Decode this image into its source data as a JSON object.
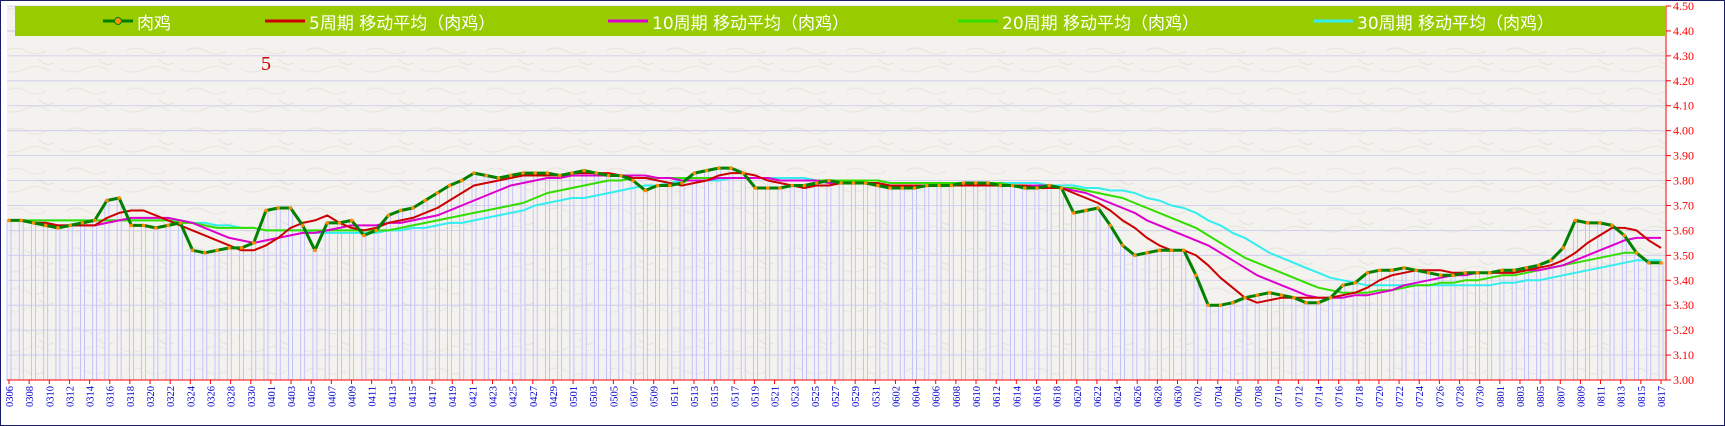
{
  "chart_data": {
    "type": "line",
    "corner_label": "5",
    "ylim": [
      3.0,
      4.5
    ],
    "y_ticks": [
      "3.00",
      "3.10",
      "3.20",
      "3.30",
      "3.40",
      "3.50",
      "3.60",
      "3.70",
      "3.80",
      "3.90",
      "4.00",
      "4.10",
      "4.20",
      "4.30",
      "4.40",
      "4.50"
    ],
    "x_tick_labels": [
      "0306",
      "0308",
      "0310",
      "0312",
      "0314",
      "0316",
      "0318",
      "0320",
      "0322",
      "0324",
      "0326",
      "0328",
      "0330",
      "0401",
      "0403",
      "0405",
      "0407",
      "0409",
      "0411",
      "0413",
      "0415",
      "0417",
      "0419",
      "0421",
      "0423",
      "0425",
      "0427",
      "0429",
      "0501",
      "0503",
      "0505",
      "0507",
      "0509",
      "0511",
      "0513",
      "0515",
      "0517",
      "0519",
      "0521",
      "0523",
      "0525",
      "0527",
      "0529",
      "0531",
      "0602",
      "0604",
      "0606",
      "0608",
      "0610",
      "0612",
      "0614",
      "0616",
      "0618",
      "0620",
      "0622",
      "0624",
      "0626",
      "0628",
      "0630",
      "0702",
      "0704",
      "0706",
      "0708",
      "0710",
      "0712",
      "0714",
      "0716",
      "0718",
      "0720",
      "0722",
      "0724",
      "0726",
      "0728",
      "0730",
      "0801",
      "0803",
      "0805",
      "0807",
      "0809",
      "0811",
      "0813",
      "0815",
      "0817"
    ],
    "series": [
      {
        "name": "肉鸡",
        "color": "#008000",
        "marker_color": "#ff8c00",
        "values": [
          3.64,
          3.64,
          3.63,
          3.62,
          3.61,
          3.62,
          3.63,
          3.64,
          3.72,
          3.73,
          3.62,
          3.62,
          3.61,
          3.62,
          3.63,
          3.52,
          3.51,
          3.52,
          3.53,
          3.53,
          3.55,
          3.68,
          3.69,
          3.69,
          3.62,
          3.52,
          3.63,
          3.63,
          3.64,
          3.58,
          3.6,
          3.66,
          3.68,
          3.69,
          3.72,
          3.75,
          3.78,
          3.8,
          3.83,
          3.82,
          3.81,
          3.82,
          3.83,
          3.83,
          3.83,
          3.82,
          3.83,
          3.84,
          3.83,
          3.82,
          3.82,
          3.8,
          3.76,
          3.78,
          3.78,
          3.79,
          3.83,
          3.84,
          3.85,
          3.85,
          3.83,
          3.77,
          3.77,
          3.77,
          3.78,
          3.78,
          3.79,
          3.8,
          3.79,
          3.79,
          3.79,
          3.78,
          3.77,
          3.77,
          3.77,
          3.78,
          3.78,
          3.78,
          3.79,
          3.79,
          3.79,
          3.78,
          3.78,
          3.77,
          3.77,
          3.78,
          3.77,
          3.67,
          3.68,
          3.69,
          3.62,
          3.54,
          3.5,
          3.51,
          3.52,
          3.52,
          3.52,
          3.42,
          3.3,
          3.3,
          3.31,
          3.33,
          3.34,
          3.35,
          3.34,
          3.33,
          3.31,
          3.31,
          3.33,
          3.38,
          3.39,
          3.43,
          3.44,
          3.44,
          3.45,
          3.44,
          3.43,
          3.42,
          3.42,
          3.43,
          3.43,
          3.43,
          3.44,
          3.44,
          3.45,
          3.46,
          3.48,
          3.53,
          3.64,
          3.63,
          3.63,
          3.62,
          3.58,
          3.51,
          3.47,
          3.47
        ]
      },
      {
        "name": "5周期 移动平均（肉鸡）",
        "color": "#cc0000",
        "values": [
          3.64,
          3.64,
          3.63,
          3.63,
          3.62,
          3.62,
          3.62,
          3.62,
          3.65,
          3.67,
          3.68,
          3.68,
          3.66,
          3.64,
          3.62,
          3.6,
          3.58,
          3.56,
          3.54,
          3.52,
          3.52,
          3.54,
          3.57,
          3.61,
          3.63,
          3.64,
          3.66,
          3.63,
          3.61,
          3.6,
          3.61,
          3.63,
          3.64,
          3.65,
          3.67,
          3.69,
          3.72,
          3.75,
          3.78,
          3.79,
          3.8,
          3.81,
          3.82,
          3.82,
          3.82,
          3.82,
          3.83,
          3.83,
          3.83,
          3.83,
          3.82,
          3.81,
          3.81,
          3.8,
          3.79,
          3.78,
          3.79,
          3.8,
          3.82,
          3.83,
          3.83,
          3.82,
          3.8,
          3.79,
          3.78,
          3.77,
          3.78,
          3.78,
          3.79,
          3.79,
          3.79,
          3.79,
          3.78,
          3.78,
          3.78,
          3.78,
          3.78,
          3.78,
          3.78,
          3.78,
          3.78,
          3.78,
          3.78,
          3.78,
          3.77,
          3.77,
          3.77,
          3.75,
          3.73,
          3.71,
          3.68,
          3.64,
          3.61,
          3.57,
          3.54,
          3.52,
          3.52,
          3.5,
          3.46,
          3.41,
          3.37,
          3.33,
          3.31,
          3.32,
          3.33,
          3.33,
          3.33,
          3.33,
          3.33,
          3.34,
          3.35,
          3.37,
          3.4,
          3.42,
          3.43,
          3.44,
          3.44,
          3.44,
          3.43,
          3.43,
          3.43,
          3.43,
          3.43,
          3.43,
          3.44,
          3.45,
          3.46,
          3.48,
          3.51,
          3.55,
          3.58,
          3.61,
          3.61,
          3.6,
          3.56,
          3.53
        ]
      },
      {
        "name": "10周期 移动平均（肉鸡）",
        "color": "#dd00cc",
        "values": [
          3.64,
          3.64,
          3.63,
          3.63,
          3.62,
          3.62,
          3.62,
          3.62,
          3.63,
          3.64,
          3.65,
          3.65,
          3.65,
          3.65,
          3.64,
          3.63,
          3.61,
          3.59,
          3.57,
          3.56,
          3.55,
          3.56,
          3.57,
          3.58,
          3.59,
          3.59,
          3.6,
          3.61,
          3.62,
          3.62,
          3.62,
          3.63,
          3.63,
          3.64,
          3.65,
          3.66,
          3.68,
          3.7,
          3.72,
          3.74,
          3.76,
          3.78,
          3.79,
          3.8,
          3.81,
          3.81,
          3.82,
          3.82,
          3.82,
          3.82,
          3.82,
          3.82,
          3.82,
          3.81,
          3.81,
          3.8,
          3.8,
          3.8,
          3.81,
          3.81,
          3.81,
          3.81,
          3.81,
          3.8,
          3.8,
          3.8,
          3.8,
          3.79,
          3.79,
          3.79,
          3.79,
          3.78,
          3.78,
          3.78,
          3.78,
          3.78,
          3.78,
          3.78,
          3.78,
          3.78,
          3.78,
          3.78,
          3.78,
          3.78,
          3.78,
          3.78,
          3.77,
          3.76,
          3.75,
          3.73,
          3.71,
          3.69,
          3.67,
          3.64,
          3.62,
          3.6,
          3.58,
          3.56,
          3.54,
          3.51,
          3.48,
          3.45,
          3.42,
          3.4,
          3.38,
          3.36,
          3.34,
          3.33,
          3.33,
          3.33,
          3.34,
          3.34,
          3.35,
          3.36,
          3.38,
          3.39,
          3.4,
          3.41,
          3.42,
          3.42,
          3.43,
          3.43,
          3.43,
          3.43,
          3.44,
          3.44,
          3.45,
          3.46,
          3.48,
          3.5,
          3.52,
          3.54,
          3.56,
          3.57,
          3.57,
          3.57
        ]
      },
      {
        "name": "20周期 移动平均（肉鸡）",
        "color": "#33dd00",
        "values": [
          3.64,
          3.64,
          3.64,
          3.64,
          3.64,
          3.64,
          3.64,
          3.64,
          3.64,
          3.64,
          3.64,
          3.64,
          3.64,
          3.64,
          3.63,
          3.63,
          3.62,
          3.61,
          3.61,
          3.61,
          3.61,
          3.6,
          3.6,
          3.6,
          3.6,
          3.6,
          3.6,
          3.6,
          3.6,
          3.6,
          3.6,
          3.6,
          3.61,
          3.62,
          3.63,
          3.64,
          3.65,
          3.66,
          3.67,
          3.68,
          3.69,
          3.7,
          3.71,
          3.73,
          3.75,
          3.76,
          3.77,
          3.78,
          3.79,
          3.8,
          3.8,
          3.81,
          3.81,
          3.81,
          3.81,
          3.81,
          3.81,
          3.81,
          3.81,
          3.81,
          3.81,
          3.81,
          3.81,
          3.8,
          3.8,
          3.8,
          3.8,
          3.8,
          3.8,
          3.8,
          3.8,
          3.8,
          3.79,
          3.79,
          3.79,
          3.79,
          3.79,
          3.79,
          3.79,
          3.79,
          3.79,
          3.79,
          3.78,
          3.78,
          3.78,
          3.78,
          3.77,
          3.77,
          3.76,
          3.75,
          3.74,
          3.73,
          3.71,
          3.69,
          3.67,
          3.65,
          3.63,
          3.61,
          3.58,
          3.55,
          3.52,
          3.49,
          3.47,
          3.45,
          3.43,
          3.41,
          3.39,
          3.37,
          3.36,
          3.35,
          3.35,
          3.35,
          3.36,
          3.36,
          3.37,
          3.38,
          3.38,
          3.39,
          3.39,
          3.4,
          3.4,
          3.41,
          3.42,
          3.42,
          3.43,
          3.44,
          3.45,
          3.46,
          3.47,
          3.48,
          3.49,
          3.5,
          3.51,
          3.51
        ]
      },
      {
        "name": "30周期 移动平均（肉鸡）",
        "color": "#33eeee",
        "values": [
          3.64,
          3.64,
          3.64,
          3.64,
          3.64,
          3.64,
          3.64,
          3.64,
          3.64,
          3.64,
          3.64,
          3.64,
          3.64,
          3.64,
          3.64,
          3.63,
          3.63,
          3.62,
          3.62,
          3.61,
          3.61,
          3.6,
          3.6,
          3.6,
          3.6,
          3.59,
          3.59,
          3.59,
          3.59,
          3.59,
          3.59,
          3.6,
          3.6,
          3.61,
          3.61,
          3.62,
          3.63,
          3.63,
          3.64,
          3.65,
          3.66,
          3.67,
          3.68,
          3.7,
          3.71,
          3.72,
          3.73,
          3.73,
          3.74,
          3.75,
          3.76,
          3.77,
          3.78,
          3.78,
          3.79,
          3.8,
          3.8,
          3.8,
          3.8,
          3.81,
          3.81,
          3.81,
          3.81,
          3.81,
          3.81,
          3.81,
          3.8,
          3.8,
          3.8,
          3.8,
          3.8,
          3.8,
          3.79,
          3.79,
          3.79,
          3.79,
          3.79,
          3.79,
          3.79,
          3.79,
          3.79,
          3.79,
          3.79,
          3.79,
          3.79,
          3.78,
          3.78,
          3.78,
          3.77,
          3.77,
          3.76,
          3.76,
          3.75,
          3.73,
          3.72,
          3.7,
          3.69,
          3.67,
          3.64,
          3.62,
          3.59,
          3.57,
          3.54,
          3.51,
          3.49,
          3.47,
          3.45,
          3.43,
          3.41,
          3.4,
          3.39,
          3.38,
          3.38,
          3.38,
          3.38,
          3.38,
          3.38,
          3.38,
          3.38,
          3.38,
          3.38,
          3.38,
          3.39,
          3.39,
          3.4,
          3.4,
          3.41,
          3.42,
          3.43,
          3.44,
          3.45,
          3.46,
          3.47,
          3.48,
          3.48,
          3.48
        ]
      }
    ]
  }
}
